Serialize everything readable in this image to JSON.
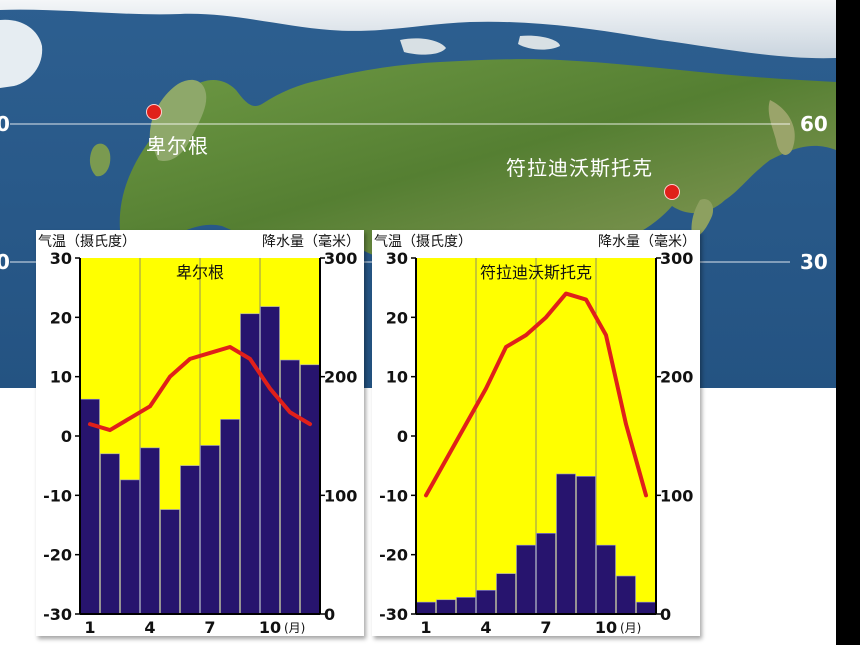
{
  "map": {
    "latitude_labels": [
      "60",
      "30"
    ],
    "left_edge_labels": [
      "0",
      "0"
    ],
    "cities": [
      {
        "name": "卑尔根"
      },
      {
        "name": "符拉迪沃斯托克"
      }
    ],
    "colors": {
      "ocean": "#2a5b8a",
      "land": "#5f8a3a",
      "dot": "#e0201a"
    }
  },
  "chart_data": [
    {
      "type": "bar",
      "title": "卑尔根",
      "ylabel_left": "气温（摄氏度）",
      "ylabel_right": "降水量（毫米）",
      "x_tick_labels": [
        "1",
        "4",
        "7",
        "10"
      ],
      "x_unit": "(月)",
      "categories": [
        "1",
        "2",
        "3",
        "4",
        "5",
        "6",
        "7",
        "8",
        "9",
        "10",
        "11",
        "12"
      ],
      "temp_ylim": [
        -30,
        30
      ],
      "temp_ticks": [
        "30",
        "20",
        "10",
        "0",
        "-10",
        "-20",
        "-30"
      ],
      "precip_ylim": [
        0,
        300
      ],
      "precip_ticks": [
        "300",
        "200",
        "100",
        "0"
      ],
      "series": [
        {
          "name": "降水量",
          "kind": "bar",
          "color": "#27146e",
          "values": [
            181,
            135,
            113,
            140,
            88,
            125,
            142,
            164,
            253,
            259,
            214,
            210
          ]
        },
        {
          "name": "气温",
          "kind": "line",
          "color": "#e0201a",
          "values": [
            2,
            1,
            3,
            5,
            10,
            13,
            14,
            15,
            13,
            8,
            4,
            2
          ]
        }
      ],
      "colors": {
        "background": "#ffff00",
        "bar": "#27146e",
        "line": "#e0201a"
      }
    },
    {
      "type": "bar",
      "title": "符拉迪沃斯托克",
      "ylabel_left": "气温（摄氏度）",
      "ylabel_right": "降水量（毫米）",
      "x_tick_labels": [
        "1",
        "4",
        "7",
        "10"
      ],
      "x_unit": "(月)",
      "categories": [
        "1",
        "2",
        "3",
        "4",
        "5",
        "6",
        "7",
        "8",
        "9",
        "10",
        "11",
        "12"
      ],
      "temp_ylim": [
        -30,
        30
      ],
      "temp_ticks": [
        "30",
        "20",
        "10",
        "0",
        "-10",
        "-20",
        "-30"
      ],
      "precip_ylim": [
        0,
        300
      ],
      "precip_ticks": [
        "300",
        "200",
        "100",
        "0"
      ],
      "series": [
        {
          "name": "降水量",
          "kind": "bar",
          "color": "#27146e",
          "values": [
            10,
            12,
            14,
            20,
            34,
            58,
            68,
            118,
            116,
            58,
            32,
            10
          ]
        },
        {
          "name": "气温",
          "kind": "line",
          "color": "#e0201a",
          "values": [
            -10,
            -4,
            2,
            8,
            15,
            17,
            20,
            24,
            23,
            17,
            2,
            -10
          ]
        }
      ],
      "colors": {
        "background": "#ffff00",
        "bar": "#27146e",
        "line": "#e0201a"
      }
    }
  ]
}
